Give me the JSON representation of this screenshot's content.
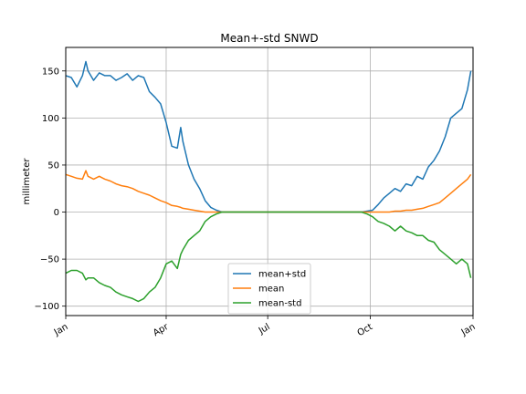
{
  "chart_data": {
    "type": "line",
    "title": "Mean+-std   SNWD",
    "xlabel": "",
    "ylabel": "millimeter",
    "xlim": [
      0,
      365
    ],
    "ylim": [
      -110,
      175
    ],
    "grid": true,
    "legend_position": "lower-center",
    "x_ticks": [
      {
        "label": "Jan",
        "day": 0
      },
      {
        "label": "Apr",
        "day": 90
      },
      {
        "label": "Jul",
        "day": 181
      },
      {
        "label": "Oct",
        "day": 273
      },
      {
        "label": "Jan",
        "day": 365
      }
    ],
    "y_ticks": [
      150,
      100,
      50,
      0,
      -50,
      -100
    ],
    "y_tick_labels": [
      "150",
      "100",
      "50",
      "0",
      "−50",
      "−100"
    ],
    "x_day": [
      0,
      5,
      10,
      15,
      18,
      20,
      25,
      30,
      35,
      40,
      45,
      50,
      55,
      60,
      65,
      70,
      75,
      80,
      85,
      90,
      95,
      100,
      103,
      105,
      110,
      115,
      120,
      125,
      130,
      135,
      140,
      145,
      150,
      155,
      160,
      170,
      180,
      190,
      200,
      210,
      220,
      230,
      240,
      250,
      260,
      265,
      270,
      275,
      280,
      285,
      290,
      295,
      300,
      305,
      310,
      315,
      320,
      325,
      330,
      335,
      340,
      345,
      350,
      355,
      360,
      363
    ],
    "series": [
      {
        "name": "mean+std",
        "color": "#1f77b4",
        "values": [
          145,
          143,
          133,
          145,
          160,
          150,
          140,
          148,
          145,
          145,
          140,
          143,
          147,
          140,
          145,
          143,
          128,
          122,
          115,
          95,
          70,
          68,
          90,
          75,
          50,
          35,
          25,
          12,
          5,
          2,
          0,
          0,
          0,
          0,
          0,
          0,
          0,
          0,
          0,
          0,
          0,
          0,
          0,
          0,
          0,
          0,
          1,
          2,
          8,
          15,
          20,
          25,
          22,
          30,
          28,
          38,
          35,
          48,
          55,
          65,
          80,
          100,
          105,
          110,
          130,
          150
        ]
      },
      {
        "name": "mean",
        "color": "#ff7f0e",
        "values": [
          40,
          38,
          36,
          35,
          44,
          38,
          35,
          38,
          35,
          33,
          30,
          28,
          27,
          25,
          22,
          20,
          18,
          15,
          12,
          10,
          7,
          6,
          5,
          4,
          3,
          2,
          1,
          0,
          0,
          0,
          0,
          0,
          0,
          0,
          0,
          0,
          0,
          0,
          0,
          0,
          0,
          0,
          0,
          0,
          0,
          0,
          0,
          0,
          0,
          0,
          0,
          1,
          1,
          2,
          2,
          3,
          4,
          6,
          8,
          10,
          15,
          20,
          25,
          30,
          35,
          40
        ]
      },
      {
        "name": "mean-std",
        "color": "#2ca02c",
        "values": [
          -65,
          -62,
          -62,
          -65,
          -72,
          -70,
          -70,
          -75,
          -78,
          -80,
          -85,
          -88,
          -90,
          -92,
          -95,
          -92,
          -85,
          -80,
          -70,
          -55,
          -52,
          -60,
          -45,
          -40,
          -30,
          -25,
          -20,
          -10,
          -5,
          -2,
          0,
          0,
          0,
          0,
          0,
          0,
          0,
          0,
          0,
          0,
          0,
          0,
          0,
          0,
          0,
          0,
          -2,
          -5,
          -10,
          -12,
          -15,
          -20,
          -15,
          -20,
          -22,
          -25,
          -25,
          -30,
          -32,
          -40,
          -45,
          -50,
          -55,
          -50,
          -55,
          -70
        ]
      }
    ]
  }
}
